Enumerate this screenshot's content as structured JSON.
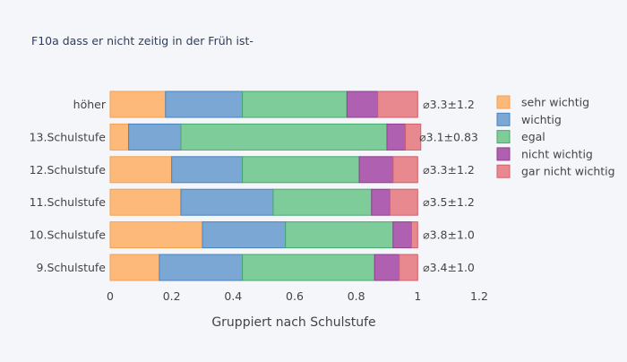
{
  "chart_data": {
    "type": "bar",
    "orientation": "horizontal",
    "stacked": true,
    "title": "F10a dass er nicht zeitig in der Früh ist-",
    "xlabel": "Gruppiert nach Schulstufe",
    "ylabel": "",
    "xlim": [
      0,
      1.2
    ],
    "x_ticks": [
      0,
      0.2,
      0.4,
      0.6,
      0.8,
      1,
      1.2
    ],
    "x_tick_labels": [
      "0",
      "0.2",
      "0.4",
      "0.6",
      "0.8",
      "1",
      "1.2"
    ],
    "grid": false,
    "legend_position": "right",
    "categories": [
      "höher",
      "13.Schulstufe",
      "12.Schulstufe",
      "11.Schulstufe",
      "10.Schulstufe",
      "9.Schulstufe"
    ],
    "series": [
      {
        "name": "sehr wichtig",
        "color": "#fdb97a",
        "stroke": "#f5a04f",
        "values": [
          0.18,
          0.06,
          0.2,
          0.23,
          0.3,
          0.16
        ]
      },
      {
        "name": "wichtig",
        "color": "#7aa7d3",
        "stroke": "#4b83bf",
        "values": [
          0.25,
          0.17,
          0.23,
          0.3,
          0.27,
          0.27
        ]
      },
      {
        "name": "egal",
        "color": "#7fcc9b",
        "stroke": "#45aa6b",
        "values": [
          0.34,
          0.67,
          0.38,
          0.32,
          0.35,
          0.43
        ]
      },
      {
        "name": "nicht wichtig",
        "color": "#b060b0",
        "stroke": "#8f3f90",
        "values": [
          0.1,
          0.06,
          0.11,
          0.06,
          0.06,
          0.08
        ]
      },
      {
        "name": "gar nicht wichtig",
        "color": "#e88990",
        "stroke": "#d2606b",
        "values": [
          0.13,
          0.05,
          0.08,
          0.09,
          0.02,
          0.06
        ]
      }
    ],
    "annotations": [
      "⌀3.3±1.2",
      "⌀3.1±0.83",
      "⌀3.3±1.2",
      "⌀3.5±1.2",
      "⌀3.8±1.0",
      "⌀3.4±1.0"
    ]
  }
}
